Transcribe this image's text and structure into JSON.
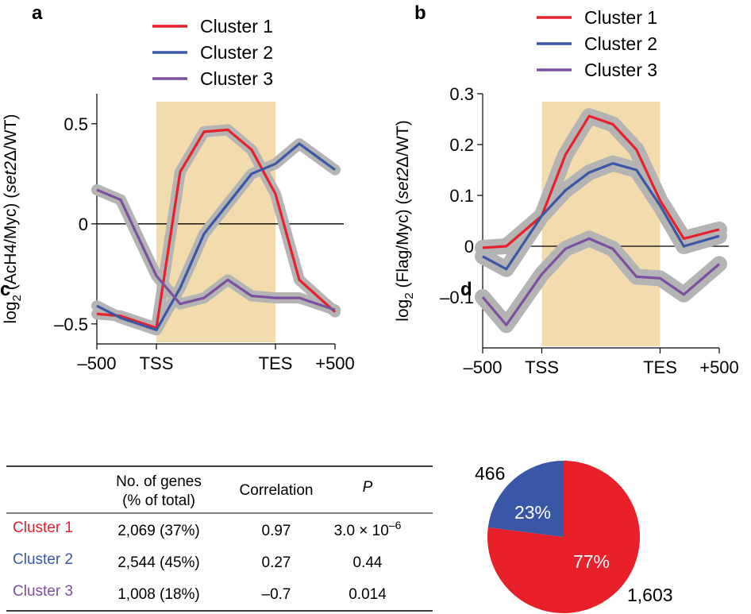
{
  "panels": [
    "a",
    "b",
    "c",
    "d"
  ],
  "chart_data": [
    {
      "panel": "a",
      "type": "line",
      "ylabel": "log2 (AcH4/Myc) (set2Δ/WT)",
      "ylabel_parts": {
        "pre": "log",
        "sub": "2",
        "mid": " (AcH4/Myc) (",
        "ital": "set2",
        "post": "Δ/WT)"
      },
      "x_ticks": [
        "–500",
        "TSS",
        "TES",
        "+500"
      ],
      "x_tick_positions": [
        -500,
        0,
        1000,
        1500
      ],
      "xlim": [
        -500,
        1500
      ],
      "ylim": [
        -0.6,
        0.65
      ],
      "y_ticks": [
        0.5,
        0,
        -0.5
      ],
      "y_tick_labels": [
        "0.5",
        "0",
        "–0.5"
      ],
      "shaded_region": [
        0,
        1000
      ],
      "reference_line": 0,
      "legend_position": "top",
      "x": [
        -500,
        -300,
        0,
        200,
        400,
        600,
        800,
        1000,
        1200,
        1500
      ],
      "series": [
        {
          "name": "Cluster 1",
          "color": "#e8202a",
          "values": [
            -0.45,
            -0.46,
            -0.52,
            0.26,
            0.46,
            0.47,
            0.37,
            0.15,
            -0.28,
            -0.44
          ]
        },
        {
          "name": "Cluster 2",
          "color": "#3a56a7",
          "values": [
            -0.41,
            -0.47,
            -0.53,
            -0.32,
            -0.05,
            0.1,
            0.25,
            0.3,
            0.4,
            0.27
          ]
        },
        {
          "name": "Cluster 3",
          "color": "#7d4fa0",
          "values": [
            0.17,
            0.12,
            -0.26,
            -0.4,
            -0.37,
            -0.28,
            -0.36,
            -0.37,
            -0.37,
            -0.43
          ]
        }
      ]
    },
    {
      "panel": "b",
      "type": "line",
      "ylabel": "log2 (Flag/Myc) (set2Δ/WT)",
      "ylabel_parts": {
        "pre": "log",
        "sub": "2",
        "mid": " (Flag/Myc) (",
        "ital": "set2",
        "post": "Δ/WT)"
      },
      "x_ticks": [
        "–500",
        "TSS",
        "TES",
        "+500"
      ],
      "x_tick_positions": [
        -500,
        0,
        1000,
        1500
      ],
      "xlim": [
        -500,
        1500
      ],
      "ylim": [
        -0.2,
        0.3
      ],
      "y_ticks": [
        0.3,
        0.2,
        0.1,
        0,
        -0.1
      ],
      "y_tick_labels": [
        "0.3",
        "0.2",
        "0.1",
        "0",
        "–0.1"
      ],
      "shaded_region": [
        0,
        1000
      ],
      "reference_line": 0,
      "legend_position": "top",
      "x": [
        -500,
        -300,
        0,
        200,
        400,
        600,
        800,
        1000,
        1200,
        1500
      ],
      "series": [
        {
          "name": "Cluster 1",
          "color": "#e8202a",
          "values": [
            -0.003,
            0.0,
            0.06,
            0.18,
            0.256,
            0.24,
            0.19,
            0.09,
            0.015,
            0.033
          ]
        },
        {
          "name": "Cluster 2",
          "color": "#3a56a7",
          "values": [
            -0.02,
            -0.045,
            0.06,
            0.11,
            0.145,
            0.163,
            0.15,
            0.08,
            0.0,
            0.02
          ]
        },
        {
          "name": "Cluster 3",
          "color": "#7d4fa0",
          "values": [
            -0.1,
            -0.155,
            -0.055,
            -0.005,
            0.015,
            -0.005,
            -0.06,
            -0.063,
            -0.095,
            -0.035
          ]
        }
      ]
    },
    {
      "panel": "c",
      "type": "table",
      "headers": {
        "genes": "No. of genes",
        "genes_sub": "(% of total)",
        "correlation": "Correlation",
        "p": "P"
      },
      "rows": [
        {
          "name": "Cluster 1",
          "color": "#e8202a",
          "genes": "2,069 (37%)",
          "correlation": "0.97",
          "p": "3.0 × 10",
          "p_exp": "–6"
        },
        {
          "name": "Cluster 2",
          "color": "#3a56a7",
          "genes": "2,544 (45%)",
          "correlation": "0.27",
          "p": "0.44",
          "p_exp": ""
        },
        {
          "name": "Cluster 3",
          "color": "#7d4fa0",
          "genes": "1,008 (18%)",
          "correlation": "–0.7",
          "p": "0.014",
          "p_exp": ""
        }
      ]
    },
    {
      "panel": "d",
      "type": "pie",
      "slices": [
        {
          "label": "23%",
          "count": "466",
          "value": 23,
          "color": "#3a56a7"
        },
        {
          "label": "77%",
          "count": "1,603",
          "value": 77,
          "color": "#e8202a"
        }
      ]
    }
  ]
}
